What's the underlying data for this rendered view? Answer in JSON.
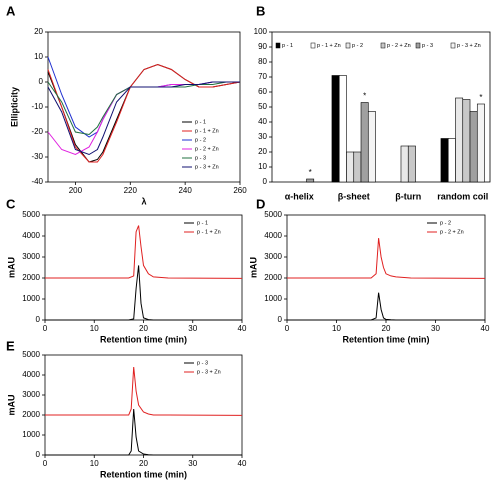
{
  "chart_data": [
    {
      "type": "line",
      "panel": "A",
      "xlabel": "λ",
      "ylabel": "Ellipticity",
      "x": [
        190,
        195,
        200,
        205,
        208,
        210,
        215,
        220,
        225,
        230,
        235,
        240,
        245,
        250,
        255,
        260
      ],
      "xlim": [
        190,
        260
      ],
      "xticks": [
        200,
        220,
        240,
        260
      ],
      "ylim": [
        -40,
        20
      ],
      "yticks": [
        -40,
        -30,
        -20,
        -10,
        0,
        10,
        20
      ],
      "legend": "lower right",
      "series": [
        {
          "name": "p - 1",
          "color": "#000000",
          "values": [
            4,
            -10,
            -25,
            -32,
            -31,
            -28,
            -15,
            -2,
            5,
            7,
            5,
            1,
            -2,
            -2,
            -1,
            0
          ]
        },
        {
          "name": "p - 1 + Zn",
          "color": "#e02020",
          "values": [
            5,
            -10,
            -26,
            -32,
            -32,
            -29,
            -16,
            -2,
            5,
            7,
            5,
            1,
            -2,
            -2,
            -1,
            0
          ]
        },
        {
          "name": "p - 2",
          "color": "#2030d0",
          "values": [
            10,
            -5,
            -18,
            -22,
            -20,
            -15,
            -5,
            -2,
            -2,
            -2,
            -1,
            -1,
            -1,
            0,
            0,
            0
          ]
        },
        {
          "name": "p - 2 + Zn",
          "color": "#e020e0",
          "values": [
            -20,
            -27,
            -29,
            -26,
            -20,
            -15,
            -5,
            -2,
            -2,
            -2,
            -1,
            -1,
            -1,
            0,
            0,
            0
          ]
        },
        {
          "name": "p - 3",
          "color": "#207040",
          "values": [
            0,
            -8,
            -20,
            -21,
            -18,
            -14,
            -5,
            -2,
            -2,
            -2,
            -2,
            -2,
            -1,
            -1,
            0,
            0
          ]
        },
        {
          "name": "p - 3 + Zn",
          "color": "#101070",
          "values": [
            -2,
            -12,
            -27,
            -29,
            -27,
            -22,
            -8,
            -2,
            -2,
            -2,
            -2,
            -1,
            -1,
            0,
            0,
            0
          ]
        }
      ]
    },
    {
      "type": "bar",
      "panel": "B",
      "categories": [
        "α-helix",
        "β-sheet",
        "β-turn",
        "random coil"
      ],
      "ylim": [
        0,
        100
      ],
      "yticks": [
        0,
        10,
        20,
        30,
        40,
        50,
        60,
        70,
        80,
        90,
        100
      ],
      "legend": "top",
      "annotations": [
        "*",
        "*",
        "*"
      ],
      "series": [
        {
          "name": "p - 1",
          "color": "#000000",
          "values": [
            0,
            71,
            0,
            29
          ]
        },
        {
          "name": "p - 1 + Zn",
          "color": "#ffffff",
          "values": [
            0,
            71,
            0,
            29
          ]
        },
        {
          "name": "p - 2",
          "color": "#e8e8e8",
          "values": [
            0,
            20,
            24,
            56
          ]
        },
        {
          "name": "p - 2 + Zn",
          "color": "#c8c8c8",
          "values": [
            0,
            20,
            24,
            55
          ]
        },
        {
          "name": "p - 3",
          "color": "#a0a0a0",
          "values": [
            2,
            53,
            0,
            47
          ]
        },
        {
          "name": "p - 3 + Zn",
          "color": "#f4f4f4",
          "values": [
            0,
            47,
            0,
            52
          ]
        }
      ]
    },
    {
      "type": "line",
      "panel": "C",
      "xlabel": "Retention time (min)",
      "ylabel": "mAU",
      "x": [
        0,
        17,
        18,
        18.5,
        19,
        19.5,
        20,
        21,
        22,
        25,
        40
      ],
      "xlim": [
        0,
        40
      ],
      "xticks": [
        0,
        10,
        20,
        30,
        40
      ],
      "ylim": [
        0,
        5000
      ],
      "yticks": [
        0,
        1000,
        2000,
        3000,
        4000,
        5000
      ],
      "legend": "upper right",
      "series": [
        {
          "name": "p - 1",
          "color": "#000000",
          "values": [
            0,
            0,
            50,
            1500,
            2600,
            800,
            100,
            20,
            0,
            0,
            0
          ]
        },
        {
          "name": "p - 1 + Zn",
          "color": "#e02020",
          "values": [
            2000,
            2000,
            2100,
            4200,
            4500,
            3500,
            2600,
            2200,
            2050,
            2000,
            1980
          ]
        }
      ]
    },
    {
      "type": "line",
      "panel": "D",
      "xlabel": "Retention time (min)",
      "ylabel": "mAU",
      "x": [
        0,
        17,
        18,
        18.5,
        19,
        19.5,
        20,
        21,
        22,
        25,
        40
      ],
      "xlim": [
        0,
        40
      ],
      "xticks": [
        0,
        10,
        20,
        30,
        40
      ],
      "ylim": [
        0,
        5000
      ],
      "yticks": [
        0,
        1000,
        2000,
        3000,
        4000,
        5000
      ],
      "legend": "upper right",
      "series": [
        {
          "name": "p - 2",
          "color": "#000000",
          "values": [
            0,
            0,
            100,
            1300,
            500,
            100,
            30,
            10,
            0,
            0,
            0
          ]
        },
        {
          "name": "p - 2 + Zn",
          "color": "#e02020",
          "values": [
            2000,
            2000,
            2200,
            3900,
            3000,
            2500,
            2200,
            2100,
            2050,
            2000,
            1980
          ]
        }
      ]
    },
    {
      "type": "line",
      "panel": "E",
      "xlabel": "Retention time (min)",
      "ylabel": "mAU",
      "x": [
        0,
        17,
        17.5,
        18,
        18.5,
        19,
        20,
        21,
        22,
        25,
        40
      ],
      "xlim": [
        0,
        40
      ],
      "xticks": [
        0,
        10,
        20,
        30,
        40
      ],
      "ylim": [
        0,
        5000
      ],
      "yticks": [
        0,
        1000,
        2000,
        3000,
        4000,
        5000
      ],
      "legend": "upper right",
      "series": [
        {
          "name": "p - 3",
          "color": "#000000",
          "values": [
            0,
            0,
            200,
            2300,
            900,
            200,
            50,
            10,
            0,
            0,
            0
          ]
        },
        {
          "name": "p - 3 + Zn",
          "color": "#e02020",
          "values": [
            2000,
            2000,
            2300,
            4400,
            3200,
            2500,
            2150,
            2050,
            2000,
            2000,
            1980
          ]
        }
      ]
    }
  ]
}
